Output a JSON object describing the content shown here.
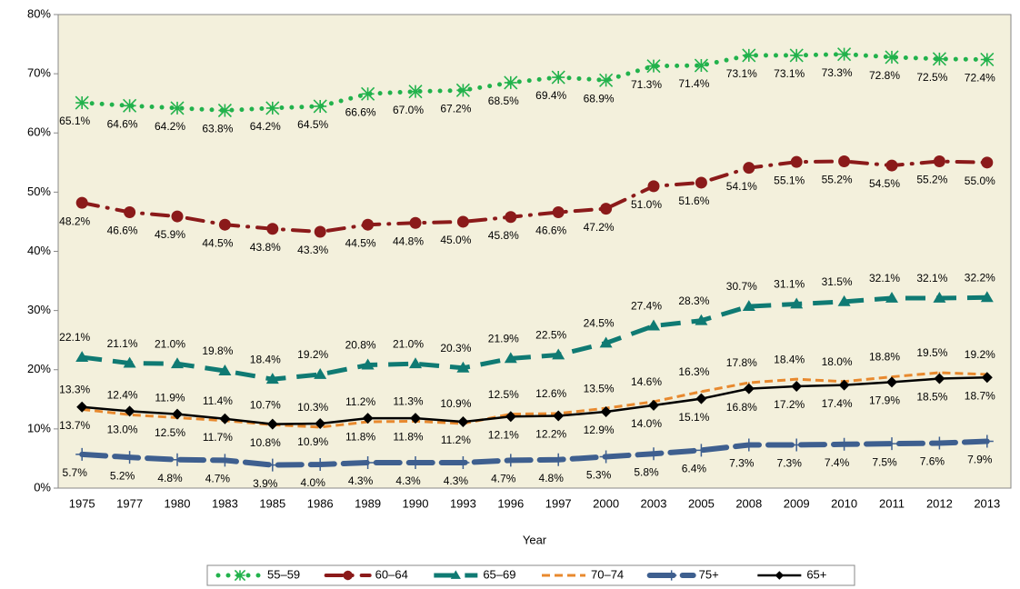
{
  "chart_data": {
    "type": "line",
    "x_label": "Year",
    "categories": [
      "1975",
      "1977",
      "1980",
      "1983",
      "1985",
      "1986",
      "1989",
      "1990",
      "1993",
      "1996",
      "1997",
      "2000",
      "2003",
      "2005",
      "2008",
      "2009",
      "2010",
      "2011",
      "2012",
      "2013"
    ],
    "ylim": [
      0,
      80
    ],
    "yticks": [
      {
        "value": 0,
        "label": "0%"
      },
      {
        "value": 10,
        "label": "10%"
      },
      {
        "value": 20,
        "label": "20%"
      },
      {
        "value": 30,
        "label": "30%"
      },
      {
        "value": 40,
        "label": "40%"
      },
      {
        "value": 50,
        "label": "50%"
      },
      {
        "value": 60,
        "label": "60%"
      },
      {
        "value": 70,
        "label": "70%"
      },
      {
        "value": 80,
        "label": "80%"
      }
    ],
    "grid": false,
    "legend": "bottom",
    "series": [
      {
        "name": "55–59",
        "color": "#22b24c",
        "line_style": "dotted",
        "marker": "asterisk",
        "label_position": "below",
        "values": [
          65.1,
          64.6,
          64.2,
          63.8,
          64.2,
          64.5,
          66.6,
          67.0,
          67.2,
          68.5,
          69.4,
          68.9,
          71.3,
          71.4,
          73.1,
          73.1,
          73.3,
          72.8,
          72.5,
          72.4
        ],
        "value_labels": [
          "65.1%",
          "64.6%",
          "64.2%",
          "63.8%",
          "64.2%",
          "64.5%",
          "66.6%",
          "67.0%",
          "67.2%",
          "68.5%",
          "69.4%",
          "68.9%",
          "71.3%",
          "71.4%",
          "73.1%",
          "73.1%",
          "73.3%",
          "72.8%",
          "72.5%",
          "72.4%"
        ]
      },
      {
        "name": "60–64",
        "color": "#8b1a1a",
        "line_style": "dashdot",
        "marker": "circle",
        "label_position": "below",
        "values": [
          48.2,
          46.6,
          45.9,
          44.5,
          43.8,
          43.3,
          44.5,
          44.8,
          45.0,
          45.8,
          46.6,
          47.2,
          51.0,
          51.6,
          54.1,
          55.1,
          55.2,
          54.5,
          55.2,
          55.0
        ],
        "value_labels": [
          "48.2%",
          "46.6%",
          "45.9%",
          "44.5%",
          "43.8%",
          "43.3%",
          "44.5%",
          "44.8%",
          "45.0%",
          "45.8%",
          "46.6%",
          "47.2%",
          "51.0%",
          "51.6%",
          "54.1%",
          "55.1%",
          "55.2%",
          "54.5%",
          "55.2%",
          "55.0%"
        ]
      },
      {
        "name": "65–69",
        "color": "#0f7a73",
        "line_style": "dashed",
        "marker": "triangle",
        "label_position": "above",
        "values": [
          22.1,
          21.1,
          21.0,
          19.8,
          18.4,
          19.2,
          20.8,
          21.0,
          20.3,
          21.9,
          22.5,
          24.5,
          27.4,
          28.3,
          30.7,
          31.1,
          31.5,
          32.1,
          32.1,
          32.2
        ],
        "value_labels": [
          "22.1%",
          "21.1%",
          "21.0%",
          "19.8%",
          "18.4%",
          "19.2%",
          "20.8%",
          "21.0%",
          "20.3%",
          "21.9%",
          "22.5%",
          "24.5%",
          "27.4%",
          "28.3%",
          "30.7%",
          "31.1%",
          "31.5%",
          "32.1%",
          "32.1%",
          "32.2%"
        ]
      },
      {
        "name": "70–74",
        "color": "#e8892e",
        "line_style": "shortdash",
        "marker": "none",
        "label_position": "above",
        "values": [
          13.3,
          12.4,
          11.9,
          11.4,
          10.7,
          10.3,
          11.2,
          11.3,
          10.9,
          12.5,
          12.6,
          13.5,
          14.6,
          16.3,
          17.8,
          18.4,
          18.0,
          18.8,
          19.5,
          19.2
        ],
        "value_labels": [
          "13.3%",
          "12.4%",
          "11.9%",
          "11.4%",
          "10.7%",
          "10.3%",
          "11.2%",
          "11.3%",
          "10.9%",
          "12.5%",
          "12.6%",
          "13.5%",
          "14.6%",
          "16.3%",
          "17.8%",
          "18.4%",
          "18.0%",
          "18.8%",
          "19.5%",
          "19.2%"
        ]
      },
      {
        "name": "75+",
        "color": "#3e5f8f",
        "line_style": "longdash",
        "marker": "plus",
        "label_position": "below",
        "values": [
          5.7,
          5.2,
          4.8,
          4.7,
          3.9,
          4.0,
          4.3,
          4.3,
          4.3,
          4.7,
          4.8,
          5.3,
          5.8,
          6.4,
          7.3,
          7.3,
          7.4,
          7.5,
          7.6,
          7.9
        ],
        "value_labels": [
          "5.7%",
          "5.2%",
          "4.8%",
          "4.7%",
          "3.9%",
          "4.0%",
          "4.3%",
          "4.3%",
          "4.3%",
          "4.7%",
          "4.8%",
          "5.3%",
          "5.8%",
          "6.4%",
          "7.3%",
          "7.3%",
          "7.4%",
          "7.5%",
          "7.6%",
          "7.9%"
        ]
      },
      {
        "name": "65+",
        "color": "#000000",
        "line_style": "solid",
        "marker": "diamond",
        "label_position": "below",
        "values": [
          13.7,
          13.0,
          12.5,
          11.7,
          10.8,
          10.9,
          11.8,
          11.8,
          11.2,
          12.1,
          12.2,
          12.9,
          14.0,
          15.1,
          16.8,
          17.2,
          17.4,
          17.9,
          18.5,
          18.7
        ],
        "value_labels": [
          "13.7%",
          "13.0%",
          "12.5%",
          "11.7%",
          "10.8%",
          "10.9%",
          "11.8%",
          "11.8%",
          "11.2%",
          "12.1%",
          "12.2%",
          "12.9%",
          "14.0%",
          "15.1%",
          "16.8%",
          "17.2%",
          "17.4%",
          "17.9%",
          "18.5%",
          "18.7%"
        ]
      }
    ]
  }
}
